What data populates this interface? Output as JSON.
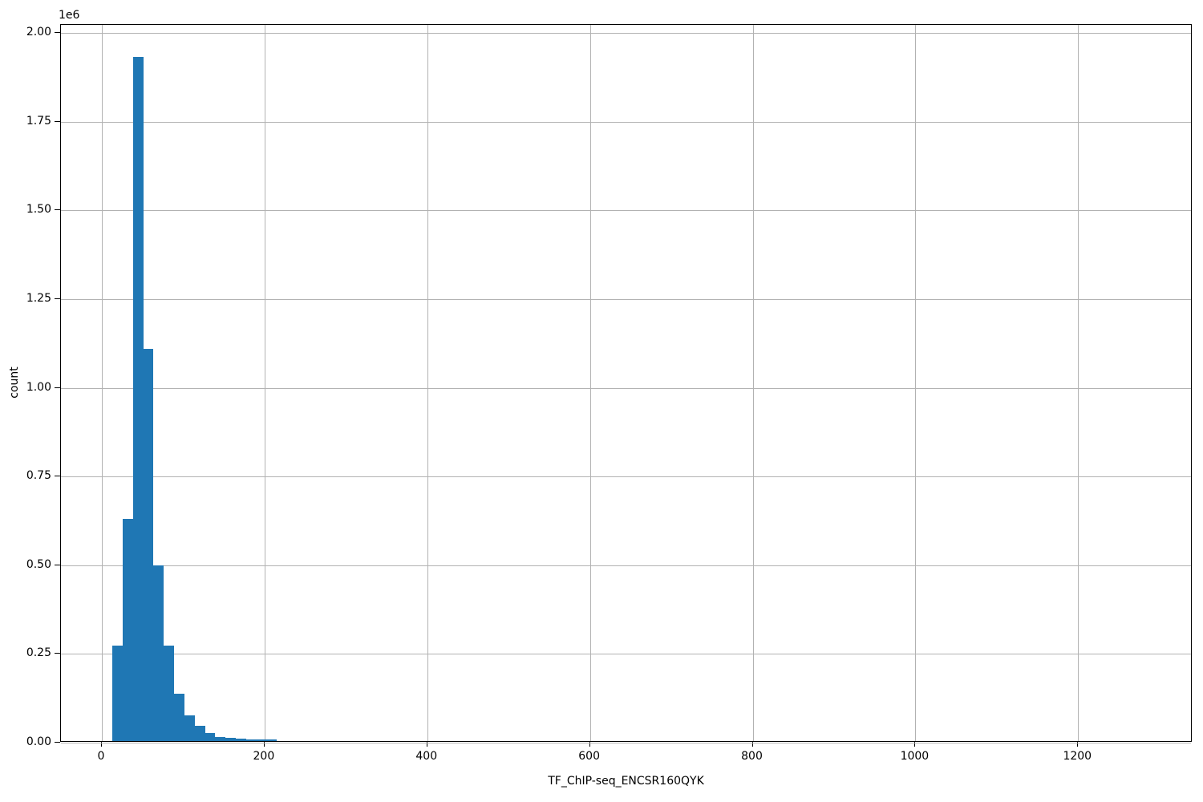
{
  "figure": {
    "background": "#ffffff",
    "bar_color": "#1f77b4",
    "grid_color": "#b2b2b2",
    "axis_color": "#000000"
  },
  "chart_data": {
    "type": "bar",
    "subtype": "histogram",
    "title": "",
    "xlabel": "TF_ChIP-seq_ENCSR160QYK",
    "ylabel": "count",
    "y_offset_label": "1e6",
    "grid": true,
    "legend": false,
    "xlim": [
      -50.3,
      1340.7
    ],
    "ylim": [
      0,
      2022700
    ],
    "x_tick_values": [
      0,
      200,
      400,
      600,
      800,
      1000,
      1200
    ],
    "x_tick_labels": [
      "0",
      "200",
      "400",
      "600",
      "800",
      "1000",
      "1200"
    ],
    "y_tick_values": [
      0,
      250000,
      500000,
      750000,
      1000000,
      1250000,
      1500000,
      1750000,
      2000000
    ],
    "y_tick_labels": [
      "0.00",
      "0.25",
      "0.50",
      "0.75",
      "1.00",
      "1.25",
      "1.50",
      "1.75",
      "2.00"
    ],
    "histogram": {
      "bin_start": 12.9,
      "bin_width": 12.65,
      "counts": [
        268000,
        625000,
        1927000,
        1106000,
        495000,
        268000,
        134000,
        73000,
        43000,
        23000,
        12000,
        9000,
        6000,
        3500,
        3500,
        4500
      ]
    }
  }
}
